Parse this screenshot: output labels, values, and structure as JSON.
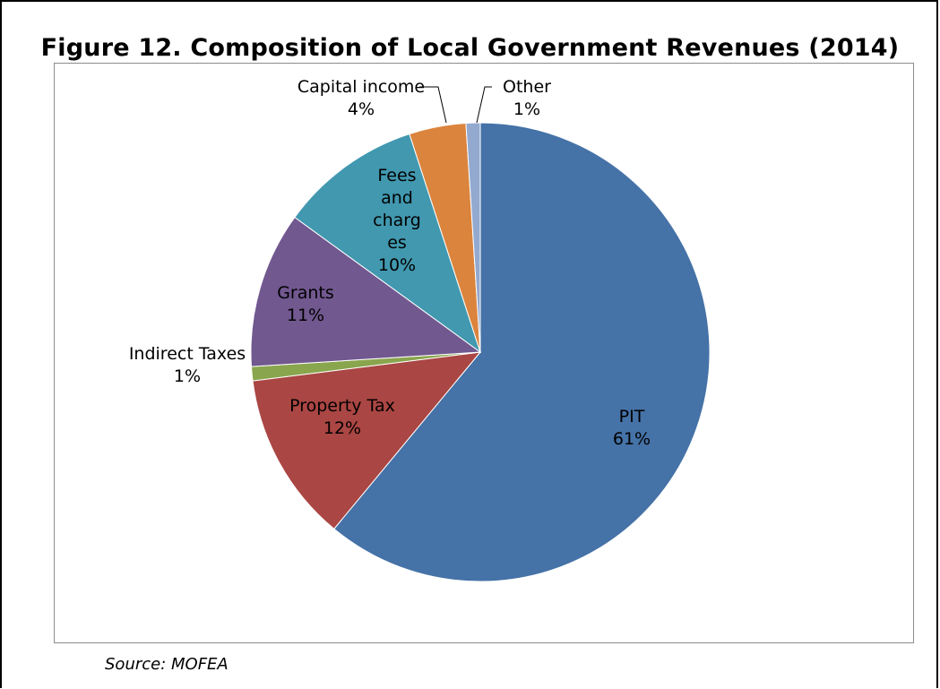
{
  "figure": {
    "title": "Figure 12. Composition of Local Government Revenues (2014)",
    "source": "Source: MOFEA"
  },
  "chart_data": {
    "type": "pie",
    "slices": [
      {
        "label": "PIT",
        "value": 61,
        "display": "61%",
        "color": "#4572A7"
      },
      {
        "label": "Property Tax",
        "value": 12,
        "display": "12%",
        "color": "#AA4643"
      },
      {
        "label": "Indirect Taxes",
        "value": 1,
        "display": "1%",
        "color": "#89A54E"
      },
      {
        "label": "Grants",
        "value": 11,
        "display": "11%",
        "color": "#71588F"
      },
      {
        "label": "Fees and charges",
        "value": 10,
        "display": "10%",
        "color": "#4198AF"
      },
      {
        "label": "Capital income",
        "value": 4,
        "display": "4%",
        "color": "#DB843D"
      },
      {
        "label": "Other",
        "value": 1,
        "display": "1%",
        "color": "#93A9CF"
      }
    ]
  }
}
